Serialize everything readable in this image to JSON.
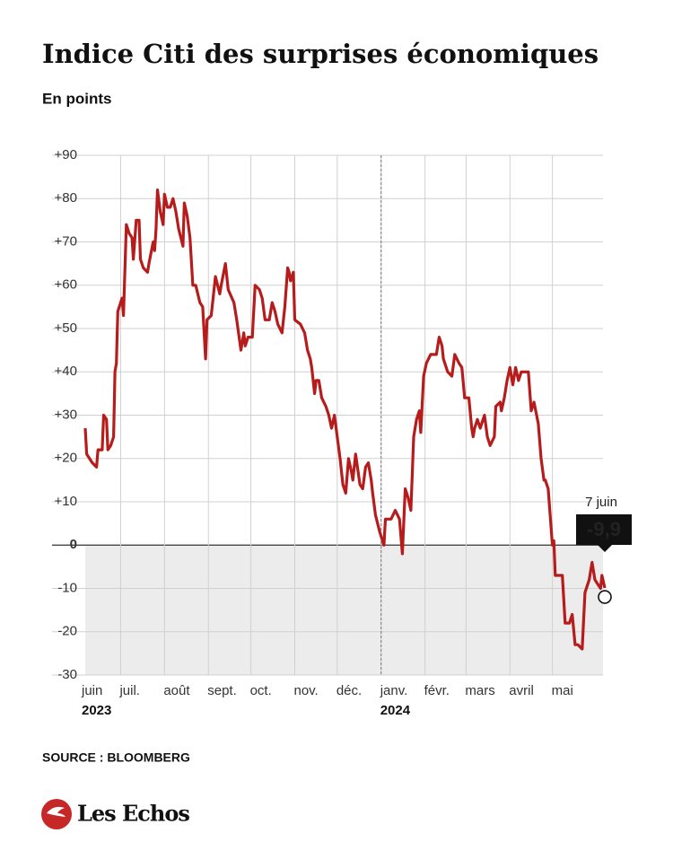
{
  "chart_data": {
    "type": "line",
    "title": "Indice Citi des surprises économiques",
    "subtitle": "En points",
    "source": "SOURCE : BLOOMBERG",
    "brand": "Les Echos",
    "xlim": [
      "2023-06-06",
      "2024-06-07"
    ],
    "ylim": [
      -30,
      90
    ],
    "yticks": [
      {
        "value": 90,
        "label": "+90"
      },
      {
        "value": 80,
        "label": "+80"
      },
      {
        "value": 70,
        "label": "+70"
      },
      {
        "value": 60,
        "label": "+60"
      },
      {
        "value": 50,
        "label": "+50"
      },
      {
        "value": 40,
        "label": "+40"
      },
      {
        "value": 30,
        "label": "+30"
      },
      {
        "value": 20,
        "label": "+20"
      },
      {
        "value": 10,
        "label": "+10"
      },
      0,
      -10,
      -20,
      -30
    ],
    "xticks": [
      {
        "value": "2023-06-01",
        "label": "juin"
      },
      {
        "value": "2023-07-01",
        "label": "juil."
      },
      {
        "value": "2023-08-01",
        "label": "août"
      },
      {
        "value": "2023-09-01",
        "label": "sept."
      },
      {
        "value": "2023-10-01",
        "label": "oct."
      },
      {
        "value": "2023-11-01",
        "label": "nov."
      },
      {
        "value": "2023-12-01",
        "label": "déc."
      },
      {
        "value": "2024-01-01",
        "label": "janv."
      },
      {
        "value": "2024-02-01",
        "label": "févr."
      },
      {
        "value": "2024-03-01",
        "label": "mars"
      },
      {
        "value": "2024-04-01",
        "label": "avril"
      },
      {
        "value": "2024-05-01",
        "label": "mai"
      }
    ],
    "year_labels": [
      {
        "value": "2023-06-01",
        "label": "2023"
      },
      {
        "value": "2024-01-01",
        "label": "2024"
      }
    ],
    "grid": true,
    "x": [
      "2023-06-06",
      "2023-06-07",
      "2023-06-11",
      "2023-06-14",
      "2023-06-15",
      "2023-06-18",
      "2023-06-19",
      "2023-06-21",
      "2023-06-22",
      "2023-06-24",
      "2023-06-26",
      "2023-06-27",
      "2023-06-28",
      "2023-06-29",
      "2023-07-02",
      "2023-07-03",
      "2023-07-05",
      "2023-07-07",
      "2023-07-09",
      "2023-07-10",
      "2023-07-12",
      "2023-07-14",
      "2023-07-15",
      "2023-07-17",
      "2023-07-20",
      "2023-07-21",
      "2023-07-24",
      "2023-07-25",
      "2023-07-26",
      "2023-07-27",
      "2023-07-29",
      "2023-07-31",
      "2023-08-01",
      "2023-08-03",
      "2023-08-05",
      "2023-08-07",
      "2023-08-09",
      "2023-08-11",
      "2023-08-14",
      "2023-08-15",
      "2023-08-17",
      "2023-08-19",
      "2023-08-21",
      "2023-08-23",
      "2023-08-26",
      "2023-08-28",
      "2023-08-30",
      "2023-08-31",
      "2023-09-03",
      "2023-09-06",
      "2023-09-09",
      "2023-09-10",
      "2023-09-13",
      "2023-09-15",
      "2023-09-19",
      "2023-09-21",
      "2023-09-24",
      "2023-09-26",
      "2023-09-27",
      "2023-09-29",
      "2023-10-02",
      "2023-10-04",
      "2023-10-07",
      "2023-10-09",
      "2023-10-11",
      "2023-10-14",
      "2023-10-16",
      "2023-10-18",
      "2023-10-20",
      "2023-10-23",
      "2023-10-25",
      "2023-10-27",
      "2023-10-28",
      "2023-10-29",
      "2023-10-31",
      "2023-11-01",
      "2023-11-05",
      "2023-11-08",
      "2023-11-10",
      "2023-11-12",
      "2023-11-13",
      "2023-11-15",
      "2023-11-16",
      "2023-11-18",
      "2023-11-20",
      "2023-11-23",
      "2023-11-25",
      "2023-11-27",
      "2023-11-29",
      "2023-12-01",
      "2023-12-03",
      "2023-12-05",
      "2023-12-07",
      "2023-12-09",
      "2023-12-11",
      "2023-12-12",
      "2023-12-14",
      "2023-12-17",
      "2023-12-19",
      "2023-12-21",
      "2023-12-23",
      "2023-12-25",
      "2023-12-26",
      "2023-12-28",
      "2023-12-31",
      "2024-01-03",
      "2024-01-04",
      "2024-01-08",
      "2024-01-11",
      "2024-01-14",
      "2024-01-16",
      "2024-01-18",
      "2024-01-20",
      "2024-01-22",
      "2024-01-24",
      "2024-01-26",
      "2024-01-28",
      "2024-01-29",
      "2024-01-31",
      "2024-02-02",
      "2024-02-05",
      "2024-02-09",
      "2024-02-11",
      "2024-02-13",
      "2024-02-14",
      "2024-02-17",
      "2024-02-20",
      "2024-02-22",
      "2024-02-25",
      "2024-02-27",
      "2024-02-29",
      "2024-03-03",
      "2024-03-05",
      "2024-03-06",
      "2024-03-07",
      "2024-03-09",
      "2024-03-11",
      "2024-03-13",
      "2024-03-14",
      "2024-03-16",
      "2024-03-18",
      "2024-03-21",
      "2024-03-22",
      "2024-03-25",
      "2024-03-26",
      "2024-03-28",
      "2024-03-30",
      "2024-04-01",
      "2024-04-03",
      "2024-04-05",
      "2024-04-07",
      "2024-04-09",
      "2024-04-13",
      "2024-04-14",
      "2024-04-16",
      "2024-04-18",
      "2024-04-21",
      "2024-04-23",
      "2024-04-25",
      "2024-04-26",
      "2024-04-28",
      "2024-05-01",
      "2024-05-02",
      "2024-05-03",
      "2024-05-05",
      "2024-05-08",
      "2024-05-10",
      "2024-05-13",
      "2024-05-15",
      "2024-05-17",
      "2024-05-19",
      "2024-05-22",
      "2024-05-24",
      "2024-05-27",
      "2024-05-29",
      "2024-05-31",
      "2024-06-02",
      "2024-06-04",
      "2024-06-05",
      "2024-06-07"
    ],
    "series": [
      {
        "name": "Indice Citi",
        "color": "#b71c1c",
        "values": [
          27,
          21,
          19,
          18,
          22,
          22,
          30,
          29,
          22,
          23,
          25,
          40,
          42,
          54,
          57,
          53,
          74,
          72,
          71,
          66,
          75,
          75,
          66,
          64,
          63,
          65,
          70,
          68,
          73,
          82,
          77,
          74,
          81,
          78,
          78,
          80,
          77,
          73,
          69,
          79,
          76,
          71,
          60,
          60,
          56,
          55,
          43,
          52,
          53,
          62,
          58,
          60,
          65,
          59,
          56,
          52,
          45,
          49,
          46,
          48,
          48,
          60,
          59,
          57,
          52,
          52,
          56,
          54,
          51,
          49,
          55,
          64,
          63,
          61,
          63,
          52,
          51,
          49,
          45,
          43,
          41,
          35,
          38,
          38,
          34,
          32,
          30,
          27,
          30,
          25,
          20,
          14,
          12,
          20,
          17,
          15,
          21,
          14,
          13,
          18,
          19,
          15,
          12,
          7,
          3,
          0,
          6,
          6,
          8,
          6,
          -2,
          13,
          11,
          8,
          25,
          29,
          31,
          26,
          39,
          42,
          44,
          44,
          48,
          46,
          43,
          40,
          39,
          44,
          42,
          41,
          34,
          34,
          27,
          25,
          27,
          29,
          27,
          29,
          30,
          25,
          23,
          25,
          32,
          33,
          31,
          34,
          38,
          41,
          37,
          41,
          38,
          40,
          40,
          40,
          31,
          33,
          28,
          20,
          15,
          15,
          13,
          0,
          1,
          -7,
          -7,
          -7,
          -18,
          -18,
          -16,
          -23,
          -23,
          -24,
          -11,
          -8,
          -4,
          -8,
          -9,
          -10,
          -7,
          -9.9
        ]
      }
    ],
    "annotations": [
      {
        "x": "2024-06-07",
        "value": -9.9,
        "label": "-9,9",
        "text": "7 juin"
      }
    ]
  }
}
